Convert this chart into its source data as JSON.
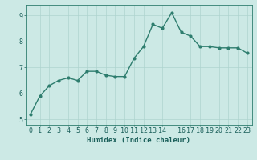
{
  "x": [
    0,
    1,
    2,
    3,
    4,
    5,
    6,
    7,
    8,
    9,
    10,
    11,
    12,
    13,
    14,
    15,
    16,
    17,
    18,
    19,
    20,
    21,
    22,
    23
  ],
  "y": [
    5.2,
    5.9,
    6.3,
    6.5,
    6.6,
    6.5,
    6.85,
    6.85,
    6.7,
    6.65,
    6.65,
    7.35,
    7.8,
    8.65,
    8.5,
    9.1,
    8.35,
    8.2,
    7.8,
    7.8,
    7.75,
    7.75,
    7.75,
    7.55
  ],
  "line_color": "#2e7d6e",
  "marker": "o",
  "marker_size": 2,
  "background_color": "#cce9e5",
  "grid_color": "#aed4cf",
  "axis_color": "#2e7d6e",
  "xlabel": "Humidex (Indice chaleur)",
  "xlim": [
    -0.5,
    23.5
  ],
  "ylim": [
    4.8,
    9.4
  ],
  "yticks": [
    5,
    6,
    7,
    8,
    9
  ],
  "xticks": [
    0,
    1,
    2,
    3,
    4,
    5,
    6,
    7,
    8,
    9,
    10,
    11,
    12,
    13,
    14,
    16,
    17,
    18,
    19,
    20,
    21,
    22,
    23
  ],
  "xtick_labels": [
    "0",
    "1",
    "2",
    "3",
    "4",
    "5",
    "6",
    "7",
    "8",
    "9",
    "10",
    "11",
    "12",
    "13",
    "14",
    "16",
    "17",
    "18",
    "19",
    "20",
    "21",
    "22",
    "23"
  ],
  "xlabel_fontsize": 6.5,
  "tick_fontsize": 6,
  "line_width": 1.0,
  "text_color": "#1a5f5a"
}
